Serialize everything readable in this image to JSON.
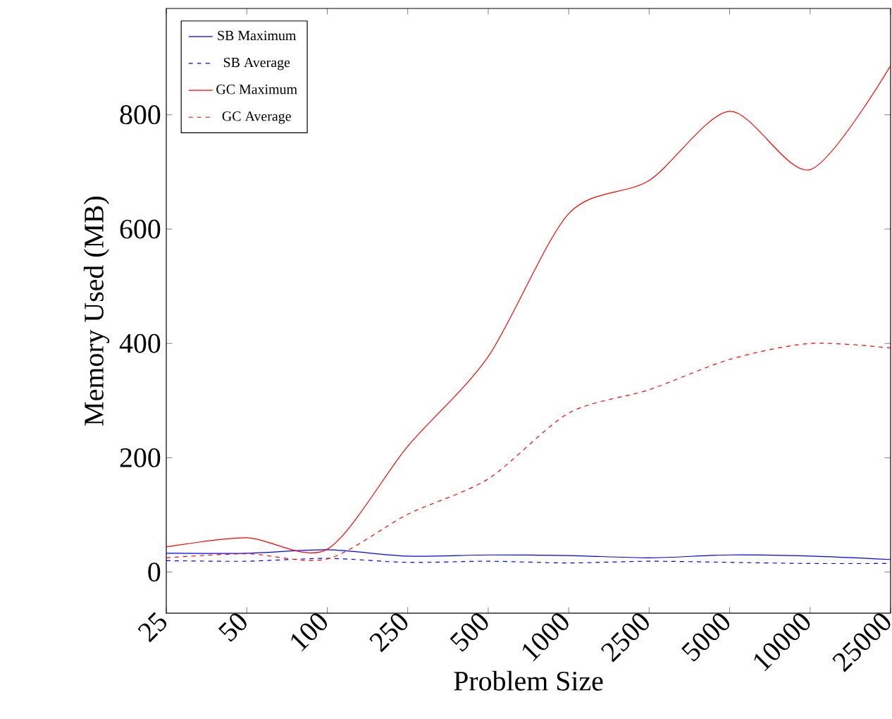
{
  "chart_data": {
    "type": "line",
    "xlabel": "Problem Size",
    "ylabel": "Memory Used (MB)",
    "categories": [
      "25",
      "50",
      "100",
      "250",
      "500",
      "1000",
      "2500",
      "5000",
      "10000",
      "25000"
    ],
    "ylim": [
      -72,
      986
    ],
    "yticks": [
      0,
      200,
      400,
      600,
      800
    ],
    "legend": "top left",
    "series": [
      {
        "name": "SB Maximum",
        "color": "#0000ff",
        "line_style": "solid",
        "values": [
          33,
          33,
          39,
          28,
          30,
          29,
          25,
          30,
          28,
          22
        ]
      },
      {
        "name": "SB Average",
        "color": "#0000ff",
        "line_style": "dashed",
        "values": [
          20,
          19,
          24,
          17,
          19,
          16,
          19,
          17,
          15,
          15
        ]
      },
      {
        "name": "GC Maximum",
        "color": "#ff0000",
        "line_style": "solid",
        "values": [
          44,
          60,
          40,
          220,
          377,
          627,
          685,
          806,
          704,
          886
        ]
      },
      {
        "name": "GC Average",
        "color": "#ff0000",
        "line_style": "dashed",
        "values": [
          25,
          32,
          23,
          101,
          163,
          278,
          319,
          372,
          400,
          392
        ]
      }
    ]
  }
}
